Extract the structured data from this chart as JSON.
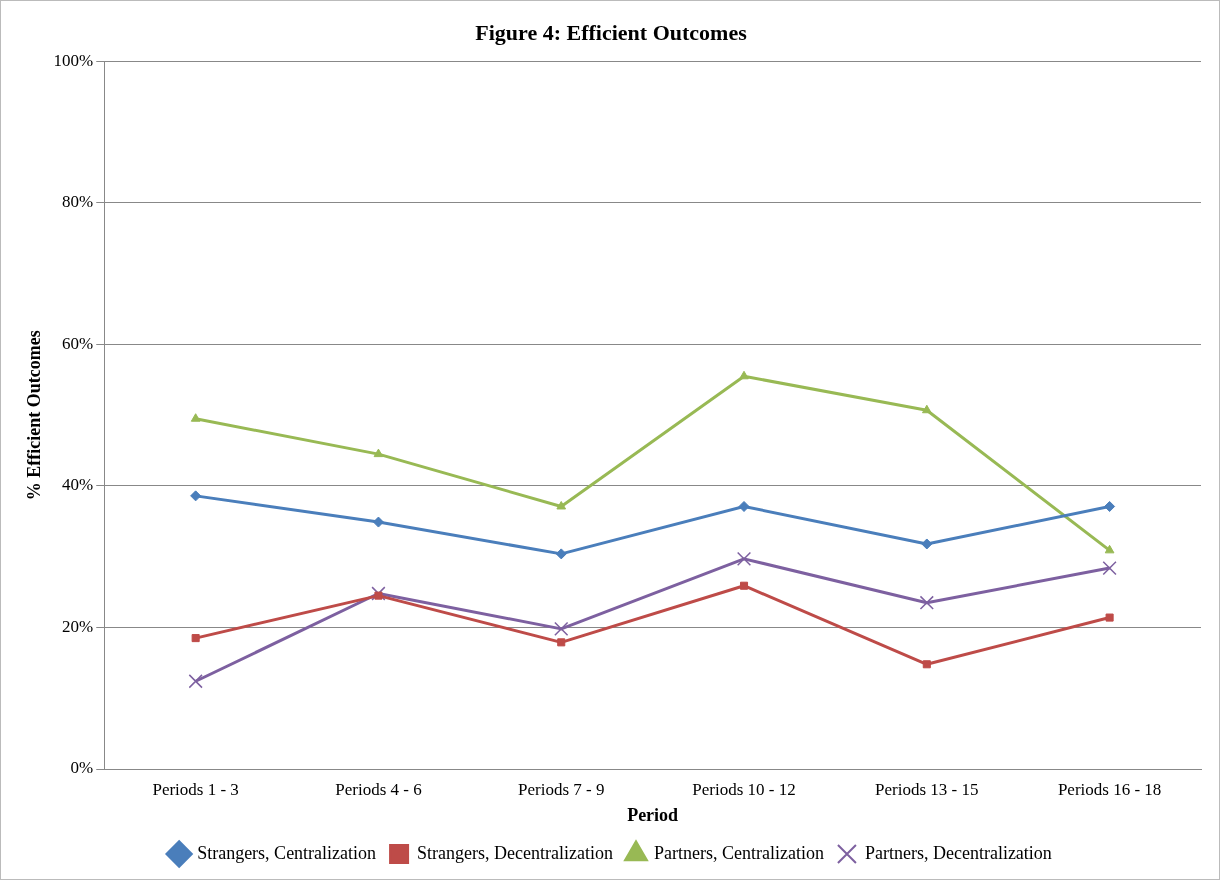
{
  "chart_data": {
    "type": "line",
    "title": "Figure 4: Efficient Outcomes",
    "xlabel": "Period",
    "ylabel": "% Efficient Outcomes",
    "categories": [
      "Periods 1 - 3",
      "Periods 4 - 6",
      "Periods 7 - 9",
      "Periods 10 - 12",
      "Periods 13 - 15",
      "Periods 16 - 18"
    ],
    "series": [
      {
        "name": "Strangers, Centralization",
        "color": "#4a7ebb",
        "marker": "diamond",
        "values": [
          38.6,
          34.9,
          30.4,
          37.1,
          31.8,
          37.1
        ]
      },
      {
        "name": "Strangers, Decentralization",
        "color": "#be4b48",
        "marker": "square",
        "values": [
          18.5,
          24.5,
          17.9,
          25.9,
          14.8,
          21.4
        ]
      },
      {
        "name": "Partners, Centralization",
        "color": "#98b954",
        "marker": "triangle",
        "values": [
          49.5,
          44.5,
          37.1,
          55.5,
          50.7,
          30.9
        ]
      },
      {
        "name": "Partners, Decentralization",
        "color": "#7d60a0",
        "marker": "cross",
        "values": [
          12.4,
          24.8,
          19.8,
          29.7,
          23.5,
          28.4
        ]
      }
    ],
    "ylim": [
      0,
      100
    ],
    "yticks": [
      {
        "value": 0,
        "label": "0%"
      },
      {
        "value": 20,
        "label": "20%"
      },
      {
        "value": 40,
        "label": "40%"
      },
      {
        "value": 60,
        "label": "60%"
      },
      {
        "value": 80,
        "label": "80%"
      },
      {
        "value": 100,
        "label": "100%"
      }
    ],
    "grid": "y",
    "legend": "bottom",
    "line_style": "solid"
  }
}
